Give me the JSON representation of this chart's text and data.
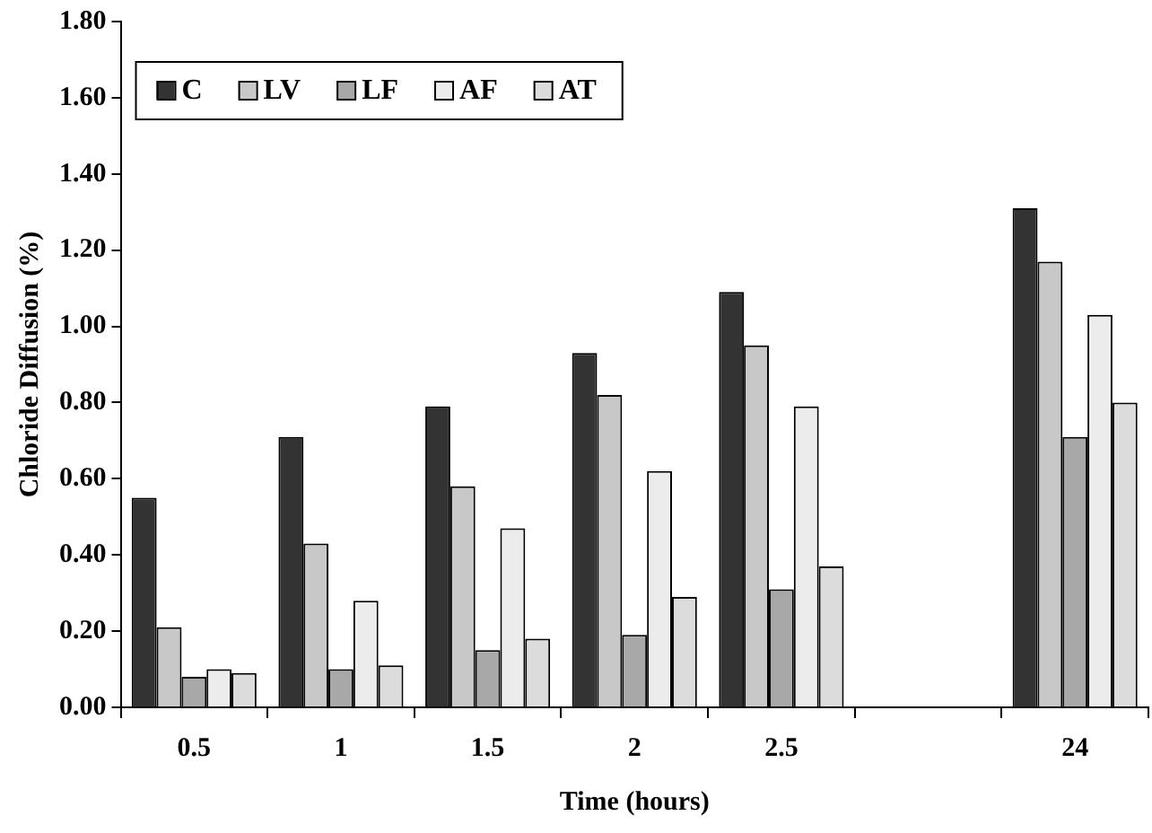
{
  "chart_data": {
    "type": "bar",
    "xlabel": "Time (hours)",
    "ylabel": "Chloride Diffusion (%)",
    "categories": [
      "0.5",
      "1",
      "1.5",
      "2",
      "2.5",
      null,
      "24"
    ],
    "series": [
      {
        "name": "C",
        "color": "#333333",
        "values": [
          0.55,
          0.71,
          0.79,
          0.93,
          1.09,
          null,
          1.31
        ]
      },
      {
        "name": "LV",
        "color": "#c8c8c8",
        "values": [
          0.21,
          0.43,
          0.58,
          0.82,
          0.95,
          null,
          1.17
        ]
      },
      {
        "name": "LF",
        "color": "#a8a8a8",
        "values": [
          0.08,
          0.1,
          0.15,
          0.19,
          0.31,
          null,
          0.71
        ]
      },
      {
        "name": "AF",
        "color": "#ececec",
        "values": [
          0.1,
          0.28,
          0.47,
          0.62,
          0.79,
          null,
          1.03
        ]
      },
      {
        "name": "AT",
        "color": "#dcdcdc",
        "values": [
          0.09,
          0.11,
          0.18,
          0.29,
          0.37,
          null,
          0.8
        ]
      }
    ],
    "ylim": [
      0,
      1.8
    ],
    "yticks": [
      {
        "value": 0,
        "label": "0.00"
      },
      {
        "value": 0.2,
        "label": "0.20"
      },
      {
        "value": 0.4,
        "label": "0.40"
      },
      {
        "value": 0.6,
        "label": "0.60"
      },
      {
        "value": 0.8,
        "label": "0.80"
      },
      {
        "value": 1,
        "label": "1.00"
      },
      {
        "value": 1.2,
        "label": "1.20"
      },
      {
        "value": 1.4,
        "label": "1.40"
      },
      {
        "value": 1.6,
        "label": "1.60"
      },
      {
        "value": 1.8,
        "label": "1.80"
      }
    ],
    "grid": false,
    "legend": "top left"
  }
}
